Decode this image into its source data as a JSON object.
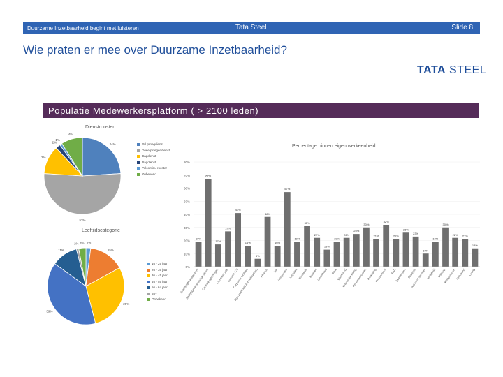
{
  "header": {
    "left_text": "Duurzame Inzetbaarheid begint met luisteren",
    "center_text": "Tata Steel",
    "slide_label": "Slide",
    "slide_number": "8"
  },
  "page_title": "Wie praten er mee over Duurzame Inzetbaarheid?",
  "logo": {
    "brand": "TATA",
    "suffix": "STEEL"
  },
  "banner_text": "Populatie Medewerkersplatform ( > 2100 leden)",
  "colors": {
    "header_blue": "#2f64b4",
    "banner_purple": "#552c59",
    "bar_gray": "#6f6f6f"
  },
  "chart_data": [
    {
      "type": "pie",
      "title": "Dienstrooster",
      "categories": [
        "Vol proegdienst",
        "Twee ploegendienst",
        "Dagdienst",
        "Dagdienst",
        "Volcontinu rooster",
        "Onbekend"
      ],
      "values": [
        24,
        52,
        12,
        2,
        1,
        9
      ],
      "labels": [
        "24%",
        "52%",
        "12%",
        "2%",
        "1%",
        "9%"
      ],
      "colors": [
        "#4f81bd",
        "#a5a5a5",
        "#ffc000",
        "#264478",
        "#5b9bd5",
        "#70ad47"
      ]
    },
    {
      "type": "pie",
      "title": "Leeftijdscategorie",
      "categories": [
        "16 - 25 jaar",
        "26 - 35 jaar",
        "36 - 45 jaar",
        "46 - 55 jaar",
        "56 - 64 jaar",
        "65+",
        "Onbekend"
      ],
      "values": [
        2,
        15,
        29,
        39,
        11,
        1,
        3
      ],
      "labels": [
        "2%",
        "15%",
        "29%",
        "39%",
        "11%",
        "1%",
        "3%"
      ],
      "colors": [
        "#5b9bd5",
        "#ed7d31",
        "#ffc000",
        "#4472c4",
        "#255e91",
        "#a5a5a5",
        "#70ad47"
      ]
    },
    {
      "type": "bar",
      "title": "Percentage binnen eigen werkeenheid",
      "categories": [
        "Arbeidstijdmanagement",
        "Bedrijfsgeneeskundige dienst",
        "Centrale opleidingen",
        "Communicatie",
        "Concern ICT",
        "Corporate facilities",
        "Duurzaamheid & Inzetbaarheid",
        "Finance",
        "HR",
        "Hoogovens",
        "Logistiek",
        "Koudwals",
        "Kwaliteit",
        "Onderhoud",
        "Staal",
        "Warmband",
        "Ertsvoorbereiding",
        "Personeelszaken",
        "Packaging",
        "Procurement",
        "R&D",
        "Stafdiensten",
        "Strategie",
        "Technical Services",
        "Veiligheid",
        "Verkoop",
        "Werkplaatsen",
        "Onbekend",
        "Overig"
      ],
      "values": [
        19,
        67,
        17,
        27,
        41,
        16,
        6,
        38,
        16,
        57,
        19,
        31,
        22,
        13,
        19,
        22,
        25,
        30,
        21,
        32,
        21,
        26,
        23,
        10,
        19,
        30,
        22,
        21,
        14
      ],
      "value_labels": [
        "19%",
        "67%",
        "17%",
        "27%",
        "41%",
        "16%",
        "6%",
        "38%",
        "16%",
        "57%",
        "19%",
        "31%",
        "22%",
        "13%",
        "19%",
        "22%",
        "25%",
        "30%",
        "21%",
        "32%",
        "21%",
        "26%",
        "23%",
        "10%",
        "19%",
        "30%",
        "22%",
        "21%",
        "14%"
      ],
      "y_ticks": [
        "0%",
        "10%",
        "20%",
        "30%",
        "40%",
        "50%",
        "60%",
        "70%",
        "80%"
      ],
      "ylim": [
        0,
        80
      ],
      "xlabel": "",
      "ylabel": ""
    }
  ]
}
